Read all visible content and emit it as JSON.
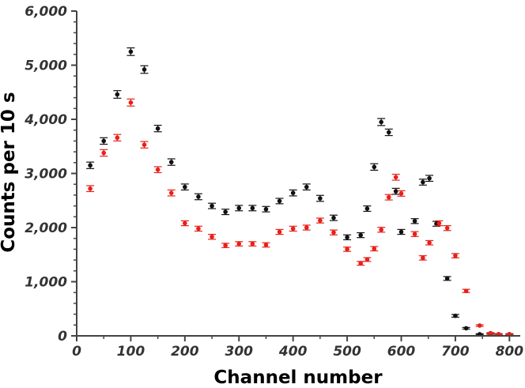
{
  "chart_data": {
    "type": "scatter",
    "title": "",
    "xlabel": "Channel number",
    "ylabel": "Counts per 10 s",
    "xlim": [
      0,
      820
    ],
    "ylim": [
      0,
      6000
    ],
    "x_ticks": [
      0,
      100,
      200,
      300,
      400,
      500,
      600,
      700,
      800
    ],
    "x_tick_labels": [
      "0",
      "100",
      "200",
      "300",
      "400",
      "500",
      "600",
      "700",
      "800"
    ],
    "y_ticks": [
      0,
      1000,
      2000,
      3000,
      4000,
      5000,
      6000
    ],
    "y_tick_labels": [
      "0",
      "1,000",
      "2,000",
      "3,000",
      "4,000",
      "5,000",
      "6,000"
    ],
    "grid": false,
    "legend": "none",
    "error_bars": true,
    "series": [
      {
        "color": "#111111",
        "points": [
          {
            "x": 25,
            "y": 3150,
            "err": 60
          },
          {
            "x": 50,
            "y": 3600,
            "err": 60
          },
          {
            "x": 75,
            "y": 4460,
            "err": 70
          },
          {
            "x": 100,
            "y": 5250,
            "err": 70
          },
          {
            "x": 125,
            "y": 4920,
            "err": 70
          },
          {
            "x": 150,
            "y": 3830,
            "err": 60
          },
          {
            "x": 175,
            "y": 3210,
            "err": 60
          },
          {
            "x": 200,
            "y": 2750,
            "err": 55
          },
          {
            "x": 225,
            "y": 2570,
            "err": 55
          },
          {
            "x": 250,
            "y": 2400,
            "err": 50
          },
          {
            "x": 275,
            "y": 2290,
            "err": 50
          },
          {
            "x": 300,
            "y": 2360,
            "err": 50
          },
          {
            "x": 325,
            "y": 2360,
            "err": 50
          },
          {
            "x": 350,
            "y": 2340,
            "err": 50
          },
          {
            "x": 375,
            "y": 2490,
            "err": 50
          },
          {
            "x": 400,
            "y": 2640,
            "err": 55
          },
          {
            "x": 425,
            "y": 2750,
            "err": 55
          },
          {
            "x": 450,
            "y": 2540,
            "err": 55
          },
          {
            "x": 475,
            "y": 2180,
            "err": 50
          },
          {
            "x": 500,
            "y": 1820,
            "err": 45
          },
          {
            "x": 525,
            "y": 1860,
            "err": 45
          },
          {
            "x": 537,
            "y": 2350,
            "err": 50
          },
          {
            "x": 550,
            "y": 3120,
            "err": 60
          },
          {
            "x": 563,
            "y": 3950,
            "err": 65
          },
          {
            "x": 577,
            "y": 3760,
            "err": 60
          },
          {
            "x": 590,
            "y": 2670,
            "err": 55
          },
          {
            "x": 600,
            "y": 1920,
            "err": 45
          },
          {
            "x": 625,
            "y": 2120,
            "err": 45
          },
          {
            "x": 640,
            "y": 2840,
            "err": 55
          },
          {
            "x": 652,
            "y": 2910,
            "err": 55
          },
          {
            "x": 665,
            "y": 2070,
            "err": 45
          },
          {
            "x": 685,
            "y": 1060,
            "err": 35
          },
          {
            "x": 700,
            "y": 370,
            "err": 25
          },
          {
            "x": 720,
            "y": 140,
            "err": 15
          },
          {
            "x": 745,
            "y": 30,
            "err": 10
          },
          {
            "x": 765,
            "y": 40,
            "err": 10
          },
          {
            "x": 780,
            "y": 30,
            "err": 10
          },
          {
            "x": 800,
            "y": 30,
            "err": 10
          }
        ]
      },
      {
        "color": "#e8201a",
        "points": [
          {
            "x": 25,
            "y": 2720,
            "err": 55
          },
          {
            "x": 50,
            "y": 3380,
            "err": 60
          },
          {
            "x": 75,
            "y": 3660,
            "err": 60
          },
          {
            "x": 100,
            "y": 4310,
            "err": 65
          },
          {
            "x": 125,
            "y": 3530,
            "err": 60
          },
          {
            "x": 150,
            "y": 3070,
            "err": 55
          },
          {
            "x": 175,
            "y": 2640,
            "err": 55
          },
          {
            "x": 200,
            "y": 2080,
            "err": 45
          },
          {
            "x": 225,
            "y": 1980,
            "err": 45
          },
          {
            "x": 250,
            "y": 1830,
            "err": 45
          },
          {
            "x": 275,
            "y": 1670,
            "err": 40
          },
          {
            "x": 300,
            "y": 1700,
            "err": 40
          },
          {
            "x": 325,
            "y": 1700,
            "err": 40
          },
          {
            "x": 350,
            "y": 1680,
            "err": 40
          },
          {
            "x": 375,
            "y": 1920,
            "err": 45
          },
          {
            "x": 400,
            "y": 1980,
            "err": 45
          },
          {
            "x": 425,
            "y": 2000,
            "err": 45
          },
          {
            "x": 450,
            "y": 2130,
            "err": 45
          },
          {
            "x": 475,
            "y": 1910,
            "err": 45
          },
          {
            "x": 500,
            "y": 1600,
            "err": 40
          },
          {
            "x": 525,
            "y": 1340,
            "err": 35
          },
          {
            "x": 537,
            "y": 1410,
            "err": 35
          },
          {
            "x": 550,
            "y": 1610,
            "err": 40
          },
          {
            "x": 563,
            "y": 1960,
            "err": 45
          },
          {
            "x": 577,
            "y": 2560,
            "err": 50
          },
          {
            "x": 590,
            "y": 2930,
            "err": 55
          },
          {
            "x": 600,
            "y": 2630,
            "err": 50
          },
          {
            "x": 625,
            "y": 1880,
            "err": 45
          },
          {
            "x": 640,
            "y": 1440,
            "err": 40
          },
          {
            "x": 652,
            "y": 1720,
            "err": 40
          },
          {
            "x": 670,
            "y": 2080,
            "err": 45
          },
          {
            "x": 685,
            "y": 1990,
            "err": 45
          },
          {
            "x": 700,
            "y": 1480,
            "err": 40
          },
          {
            "x": 720,
            "y": 830,
            "err": 30
          },
          {
            "x": 745,
            "y": 190,
            "err": 15
          },
          {
            "x": 765,
            "y": 50,
            "err": 10
          },
          {
            "x": 780,
            "y": 30,
            "err": 10
          },
          {
            "x": 800,
            "y": 30,
            "err": 10
          }
        ]
      }
    ]
  }
}
